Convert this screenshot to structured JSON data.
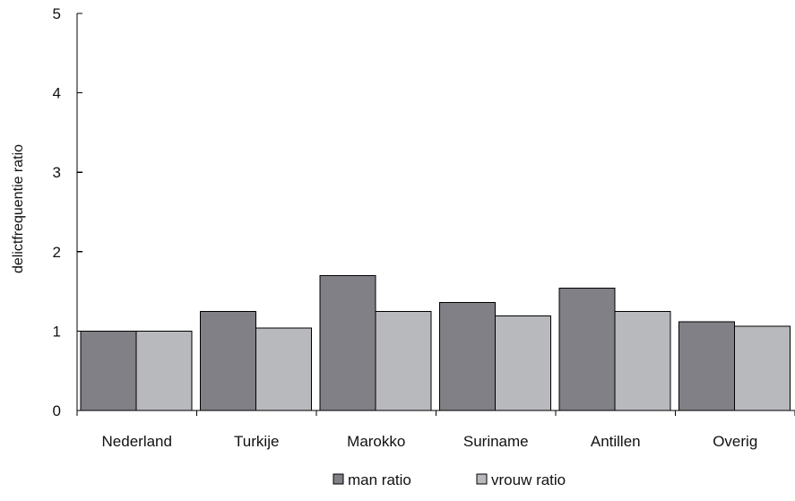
{
  "chart_data": {
    "type": "bar",
    "title": "",
    "xlabel": "",
    "ylabel": "delictfrequentie ratio",
    "ylim": [
      0,
      5
    ],
    "yticks": [
      0,
      1,
      2,
      3,
      4,
      5
    ],
    "categories": [
      "Nederland",
      "Turkije",
      "Marokko",
      "Suriname",
      "Antillen",
      "Overig"
    ],
    "series": [
      {
        "name": "man ratio",
        "color": "#808086",
        "values": [
          1.0,
          1.25,
          1.7,
          1.36,
          1.54,
          1.12
        ]
      },
      {
        "name": "vrouw ratio",
        "color": "#b8b9bd",
        "values": [
          1.0,
          1.04,
          1.25,
          1.19,
          1.25,
          1.06
        ]
      }
    ],
    "grid": false,
    "legend_position": "bottom"
  }
}
